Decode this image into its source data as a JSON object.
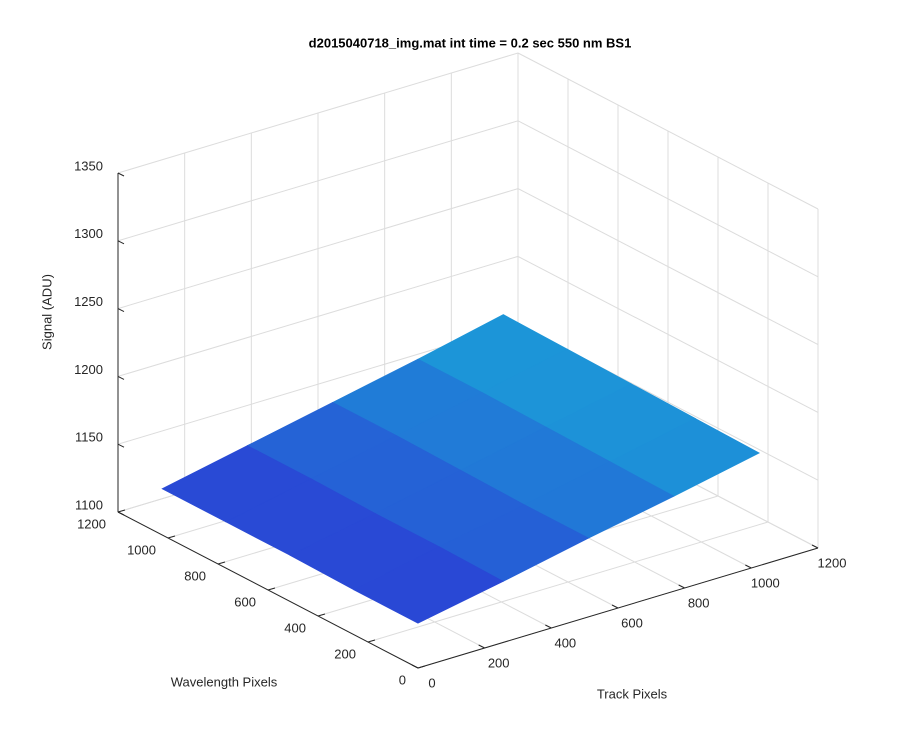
{
  "chart_data": {
    "type": "surface",
    "title": "d2015040718_img.mat int time = 0.2 sec  550 nm BS1",
    "xlabel": "Track Pixels",
    "ylabel": "Wavelength Pixels",
    "zlabel": "Signal (ADU)",
    "x": [
      0,
      256,
      512,
      768,
      1024
    ],
    "y": [
      0,
      256,
      512,
      768,
      1024
    ],
    "z": [
      [
        1133,
        1145,
        1158,
        1170,
        1183
      ],
      [
        1133,
        1146,
        1158,
        1171,
        1184
      ],
      [
        1134,
        1146,
        1159,
        1172,
        1185
      ],
      [
        1134,
        1147,
        1160,
        1173,
        1186
      ],
      [
        1134,
        1147,
        1160,
        1173,
        1187
      ]
    ],
    "xlim": [
      0,
      1200
    ],
    "ylim": [
      0,
      1200
    ],
    "zlim": [
      1100,
      1350
    ],
    "xticks": [
      0,
      200,
      400,
      600,
      800,
      1000,
      1200
    ],
    "yticks": [
      0,
      200,
      400,
      600,
      800,
      1000,
      1200
    ],
    "zticks": [
      1100,
      1150,
      1200,
      1250,
      1300,
      1350
    ],
    "grid": true,
    "colormap": [
      "#2b3cd4",
      "#1aa3d9"
    ]
  }
}
